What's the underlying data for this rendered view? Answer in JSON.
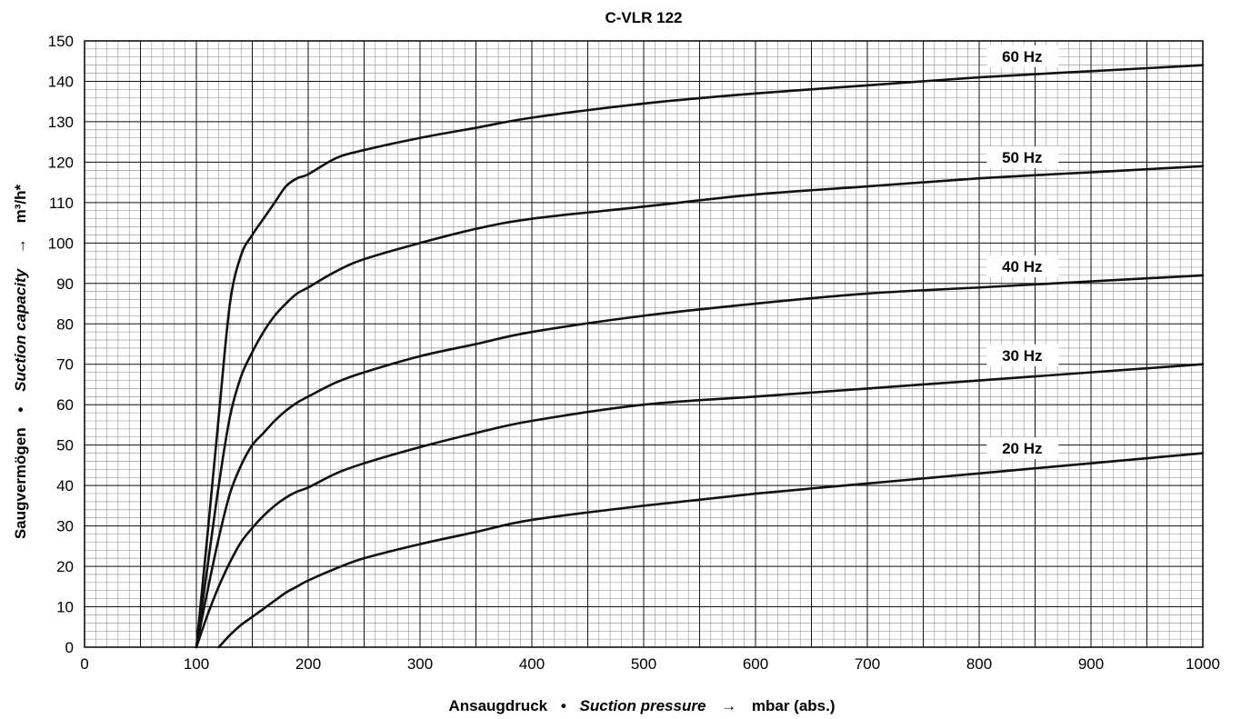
{
  "chart_data": {
    "type": "line",
    "title": "C-VLR 122",
    "xlabel": {
      "part1": "Ansaugdruck",
      "sep1": "•",
      "part2": "Suction pressure",
      "sep2": "→",
      "part3": "mbar (abs.)"
    },
    "ylabel": {
      "part1": "Saugvermögen",
      "sep1": "•",
      "part2": "Suction capacity",
      "sep2": "→",
      "part3": "m³/h*"
    },
    "xlim": [
      0,
      1000
    ],
    "ylim": [
      0,
      150
    ],
    "x_ticks": [
      0,
      100,
      200,
      300,
      400,
      500,
      600,
      700,
      800,
      900,
      1000
    ],
    "y_ticks": [
      0,
      10,
      20,
      30,
      40,
      50,
      60,
      70,
      80,
      90,
      100,
      110,
      120,
      130,
      140,
      150
    ],
    "grid": true,
    "series": [
      {
        "name": "60 Hz",
        "label_at": [
          810,
          146
        ],
        "x": [
          100,
          110,
          120,
          130,
          140,
          150,
          160,
          170,
          180,
          190,
          200,
          225,
          250,
          300,
          350,
          400,
          500,
          600,
          700,
          800,
          900,
          1000
        ],
        "y": [
          0,
          28,
          57,
          85,
          97,
          102,
          106,
          110,
          114,
          116,
          117,
          121,
          123,
          126,
          128.5,
          131,
          134.5,
          137,
          139,
          141,
          142.5,
          144
        ]
      },
      {
        "name": "50 Hz",
        "label_at": [
          810,
          121
        ],
        "x": [
          100,
          110,
          120,
          130,
          140,
          150,
          160,
          170,
          180,
          190,
          200,
          225,
          250,
          300,
          350,
          400,
          500,
          600,
          700,
          800,
          900,
          1000
        ],
        "y": [
          0,
          20,
          40,
          57,
          67,
          73,
          78,
          82,
          85,
          87.5,
          89,
          93,
          96,
          100,
          103.5,
          106,
          109,
          112,
          114,
          116,
          117.5,
          119
        ]
      },
      {
        "name": "40 Hz",
        "label_at": [
          810,
          94
        ],
        "x": [
          100,
          110,
          120,
          130,
          140,
          150,
          160,
          170,
          180,
          190,
          200,
          225,
          250,
          300,
          350,
          400,
          500,
          600,
          700,
          800,
          900,
          1000
        ],
        "y": [
          0,
          14,
          27,
          38,
          45,
          50,
          53,
          56,
          58.5,
          60.5,
          62,
          65.5,
          68,
          72,
          75,
          78,
          82,
          85,
          87.5,
          89,
          90.5,
          92
        ]
      },
      {
        "name": "30 Hz",
        "label_at": [
          810,
          72
        ],
        "x": [
          100,
          110,
          120,
          130,
          140,
          150,
          160,
          170,
          180,
          190,
          200,
          225,
          250,
          300,
          350,
          400,
          500,
          600,
          700,
          800,
          900,
          1000
        ],
        "y": [
          0,
          8,
          15,
          21,
          26,
          29.5,
          32.5,
          35,
          37,
          38.5,
          39.5,
          43,
          45.5,
          49.5,
          53,
          56,
          60,
          62,
          64,
          66,
          68,
          70
        ]
      },
      {
        "name": "20 Hz",
        "label_at": [
          810,
          49
        ],
        "x": [
          120,
          130,
          140,
          150,
          160,
          170,
          180,
          190,
          200,
          225,
          250,
          300,
          350,
          400,
          500,
          600,
          700,
          800,
          900,
          1000
        ],
        "y": [
          0,
          3,
          5.5,
          7.5,
          9.5,
          11.5,
          13.5,
          15,
          16.5,
          19.5,
          22,
          25.5,
          28.5,
          31.5,
          35,
          38,
          40.5,
          43,
          45.5,
          48
        ]
      }
    ]
  }
}
